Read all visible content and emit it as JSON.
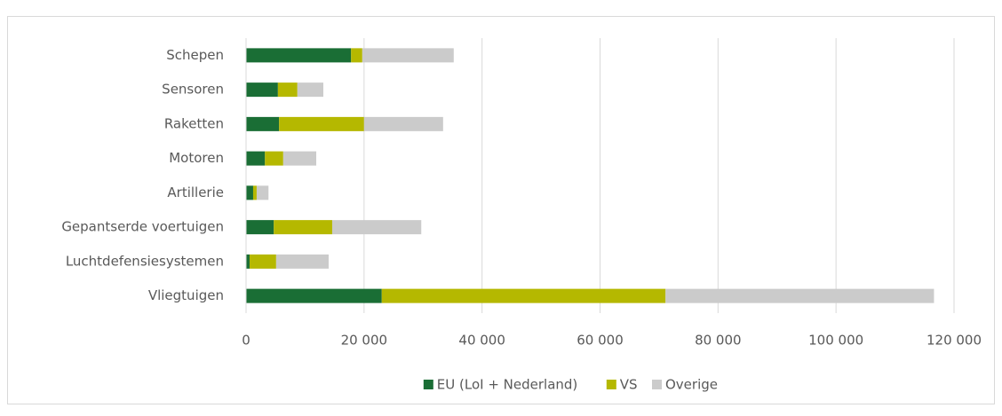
{
  "chart_data": {
    "type": "stacked_bar_horizontal",
    "categories": [
      "Schepen",
      "Sensoren",
      "Raketten",
      "Motoren",
      "Artillerie",
      "Gepantserde voertuigen",
      "Luchtdefensiesystemen",
      "Vliegtuigen"
    ],
    "series": [
      {
        "name": "EU (LoI + Nederland)",
        "color": "#1a6e35",
        "values": [
          17800,
          5400,
          5600,
          3200,
          1200,
          4700,
          600,
          23000
        ]
      },
      {
        "name": "VS",
        "color": "#b5b800",
        "values": [
          1900,
          3300,
          14400,
          3100,
          600,
          9900,
          4500,
          48100
        ]
      },
      {
        "name": "Overige",
        "color": "#cbcbcb",
        "values": [
          15500,
          4400,
          13400,
          5600,
          2000,
          15100,
          8900,
          45500
        ]
      }
    ],
    "xlim": [
      0,
      120000
    ],
    "xticks": [
      0,
      {
        "value": 20000,
        "label": "20 000"
      },
      {
        "value": 40000,
        "label": "40 000"
      },
      {
        "value": 60000,
        "label": "60 000"
      },
      {
        "value": 80000,
        "label": "80 000"
      },
      {
        "value": 100000,
        "label": "100 000"
      },
      {
        "value": 120000,
        "label": "120 000"
      }
    ],
    "grid": true,
    "legend": "bottom"
  }
}
